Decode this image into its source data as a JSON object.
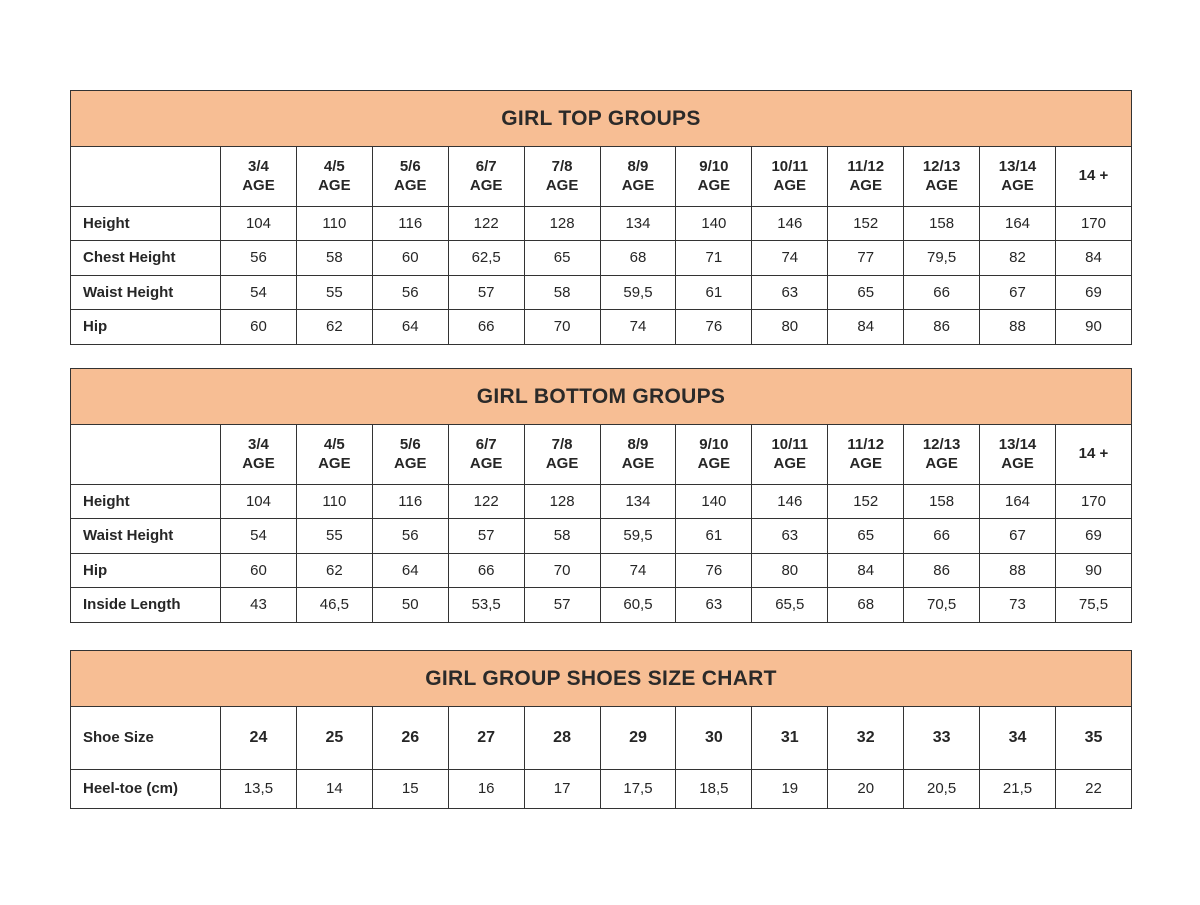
{
  "colors": {
    "band_bg": "#F7BE94",
    "border": "#333333",
    "text": "#262626"
  },
  "tables": [
    {
      "title": "GIRL TOP GROUPS",
      "column_headers": [
        "3/4\nAGE",
        "4/5\nAGE",
        "5/6\nAGE",
        "6/7\nAGE",
        "7/8\nAGE",
        "8/9\nAGE",
        "9/10\nAGE",
        "10/11\nAGE",
        "11/12\nAGE",
        "12/13\nAGE",
        "13/14\nAGE",
        "14 +"
      ],
      "rows": [
        {
          "label": "Height",
          "values": [
            "104",
            "110",
            "116",
            "122",
            "128",
            "134",
            "140",
            "146",
            "152",
            "158",
            "164",
            "170"
          ]
        },
        {
          "label": "Chest Height",
          "values": [
            "56",
            "58",
            "60",
            "62,5",
            "65",
            "68",
            "71",
            "74",
            "77",
            "79,5",
            "82",
            "84"
          ]
        },
        {
          "label": "Waist Height",
          "values": [
            "54",
            "55",
            "56",
            "57",
            "58",
            "59,5",
            "61",
            "63",
            "65",
            "66",
            "67",
            "69"
          ]
        },
        {
          "label": "Hip",
          "values": [
            "60",
            "62",
            "64",
            "66",
            "70",
            "74",
            "76",
            "80",
            "84",
            "86",
            "88",
            "90"
          ]
        }
      ]
    },
    {
      "title": "GIRL BOTTOM GROUPS",
      "column_headers": [
        "3/4\nAGE",
        "4/5\nAGE",
        "5/6\nAGE",
        "6/7\nAGE",
        "7/8\nAGE",
        "8/9\nAGE",
        "9/10\nAGE",
        "10/11\nAGE",
        "11/12\nAGE",
        "12/13\nAGE",
        "13/14\nAGE",
        "14 +"
      ],
      "rows": [
        {
          "label": "Height",
          "values": [
            "104",
            "110",
            "116",
            "122",
            "128",
            "134",
            "140",
            "146",
            "152",
            "158",
            "164",
            "170"
          ]
        },
        {
          "label": "Waist Height",
          "values": [
            "54",
            "55",
            "56",
            "57",
            "58",
            "59,5",
            "61",
            "63",
            "65",
            "66",
            "67",
            "69"
          ]
        },
        {
          "label": "Hip",
          "values": [
            "60",
            "62",
            "64",
            "66",
            "70",
            "74",
            "76",
            "80",
            "84",
            "86",
            "88",
            "90"
          ]
        },
        {
          "label": "Inside Length",
          "values": [
            "43",
            "46,5",
            "50",
            "53,5",
            "57",
            "60,5",
            "63",
            "65,5",
            "68",
            "70,5",
            "73",
            "75,5"
          ]
        }
      ]
    },
    {
      "title": "GIRL GROUP SHOES SIZE CHART",
      "column_headers": null,
      "rows": [
        {
          "label": "Shoe Size",
          "bold_values": true,
          "values": [
            "24",
            "25",
            "26",
            "27",
            "28",
            "29",
            "30",
            "31",
            "32",
            "33",
            "34",
            "35"
          ]
        },
        {
          "label": "Heel-toe (cm)",
          "values": [
            "13,5",
            "14",
            "15",
            "16",
            "17",
            "17,5",
            "18,5",
            "19",
            "20",
            "20,5",
            "21,5",
            "22"
          ]
        }
      ]
    }
  ]
}
